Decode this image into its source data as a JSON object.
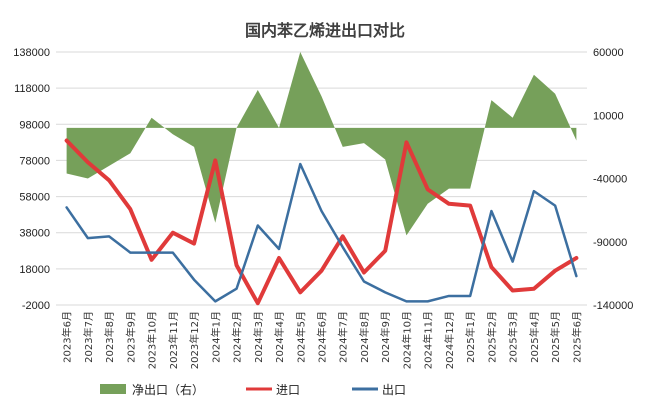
{
  "chart_data": {
    "type": "line",
    "title": "国内苯乙烯进出口对比",
    "categories": [
      "2023年6月",
      "2023年7月",
      "2023年8月",
      "2023年9月",
      "2023年10月",
      "2023年11月",
      "2023年12月",
      "2024年1月",
      "2024年2月",
      "2024年3月",
      "2024年4月",
      "2024年5月",
      "2024年6月",
      "2024年7月",
      "2024年8月",
      "2024年9月",
      "2024年10月",
      "2024年11月",
      "2024年12月",
      "2025年1月",
      "2025年2月",
      "2025年3月",
      "2025年4月",
      "2025年5月",
      "2025年6月"
    ],
    "y_left": {
      "ticks": [
        "138000",
        "118000",
        "98000",
        "78000",
        "58000",
        "38000",
        "18000",
        "-2000"
      ],
      "ylim": [
        -2000,
        138000
      ]
    },
    "y_right": {
      "ticks": [
        "60000",
        "10000",
        "-40000",
        "-90000",
        "-140000"
      ],
      "ylim": [
        -140000,
        60000
      ]
    },
    "series": [
      {
        "name": "净出口（右）",
        "type": "area",
        "axis": "right",
        "color": "#76a05a",
        "values": [
          -36000,
          -40000,
          -30000,
          -20000,
          8000,
          -5000,
          -15000,
          -75000,
          0,
          30000,
          0,
          60000,
          25000,
          -15000,
          -12000,
          -25000,
          -85000,
          -60000,
          -48000,
          -48000,
          22000,
          8000,
          42000,
          27000,
          -10000
        ]
      },
      {
        "name": "进口",
        "type": "line",
        "axis": "left",
        "color": "#e03a3a",
        "values": [
          89000,
          77000,
          67000,
          51000,
          23000,
          38000,
          32000,
          78000,
          20000,
          -1000,
          24000,
          5000,
          17000,
          36000,
          16000,
          28000,
          88000,
          62000,
          54000,
          53000,
          19000,
          6000,
          7000,
          17000,
          24000
        ]
      },
      {
        "name": "出口",
        "type": "line",
        "axis": "left",
        "color": "#3c6fa0",
        "values": [
          52000,
          35000,
          36000,
          27000,
          27000,
          27000,
          12000,
          0,
          7000,
          42000,
          29000,
          76000,
          50000,
          30000,
          11000,
          5000,
          0,
          0,
          3000,
          3000,
          50000,
          22000,
          61000,
          53000,
          14000
        ]
      }
    ],
    "legend": {
      "placement": "bottom"
    },
    "grid": true
  }
}
